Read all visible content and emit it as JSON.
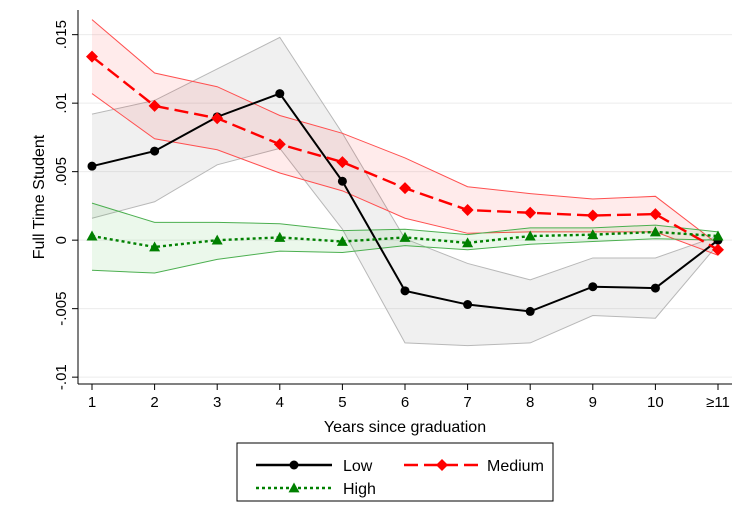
{
  "chart_data": {
    "type": "line",
    "title": "",
    "xlabel": "Years since graduation",
    "ylabel": "Full Time Student",
    "x_ticks": [
      "1",
      "2",
      "3",
      "4",
      "5",
      "6",
      "7",
      "8",
      "9",
      "10",
      "≥11"
    ],
    "y_ticks": [
      {
        "value": 0.015,
        "label": ".015"
      },
      {
        "value": 0.01,
        "label": ".01"
      },
      {
        "value": 0.005,
        "label": ".005"
      },
      {
        "value": 0,
        "label": "0"
      },
      {
        "value": -0.005,
        "label": "-.005"
      },
      {
        "value": -0.01,
        "label": "-.01"
      }
    ],
    "ylim": [
      -0.0105,
      0.0168
    ],
    "grid": true,
    "legend_position": "bottom",
    "series": [
      {
        "name": "Low",
        "color": "#000000",
        "marker": "circle",
        "line_style": "solid",
        "values": [
          0.0054,
          0.0065,
          0.009,
          0.0107,
          0.0043,
          -0.0037,
          -0.0047,
          -0.0052,
          -0.0034,
          -0.0035,
          0.0
        ],
        "ci_lower": [
          0.0016,
          0.0028,
          0.0055,
          0.0067,
          0.0008,
          -0.0075,
          -0.0077,
          -0.0075,
          -0.0055,
          -0.0057,
          -0.0003
        ],
        "ci_upper": [
          0.0092,
          0.0102,
          0.0125,
          0.0148,
          0.0078,
          0.0001,
          -0.0017,
          -0.0029,
          -0.0013,
          -0.0013,
          0.0003
        ],
        "band_fill": "rgba(128,128,128,0.12)",
        "band_stroke": "#b8b8b8"
      },
      {
        "name": "Medium",
        "color": "#ff0000",
        "marker": "diamond",
        "line_style": "dashed",
        "values": [
          0.0134,
          0.0098,
          0.0089,
          0.007,
          0.0057,
          0.0038,
          0.0022,
          0.002,
          0.0018,
          0.0019,
          -0.0007
        ],
        "ci_lower": [
          0.0107,
          0.0074,
          0.0066,
          0.0049,
          0.0036,
          0.0016,
          0.0005,
          0.0006,
          0.0006,
          0.0006,
          -0.0011
        ],
        "ci_upper": [
          0.0161,
          0.0122,
          0.0112,
          0.0091,
          0.0078,
          0.006,
          0.0039,
          0.0034,
          0.003,
          0.0032,
          -0.0003
        ],
        "band_fill": "rgba(255,0,0,0.08)",
        "band_stroke": "#ff5050"
      },
      {
        "name": "High",
        "color": "#008000",
        "marker": "triangle",
        "line_style": "dotted",
        "values": [
          0.0003,
          -0.0005,
          0.0,
          0.0002,
          -0.0001,
          0.0002,
          -0.0002,
          0.0003,
          0.0004,
          0.0006,
          0.0003
        ],
        "ci_lower": [
          -0.0022,
          -0.0024,
          -0.0014,
          -0.0008,
          -0.0009,
          -0.0004,
          -0.0007,
          -0.0003,
          -0.0001,
          0.0001,
          0.0
        ],
        "ci_upper": [
          0.0027,
          0.0013,
          0.0013,
          0.0012,
          0.0007,
          0.0008,
          0.0004,
          0.0009,
          0.0009,
          0.0011,
          0.0006
        ],
        "band_fill": "rgba(0,160,0,0.08)",
        "band_stroke": "#4caf50"
      }
    ]
  }
}
